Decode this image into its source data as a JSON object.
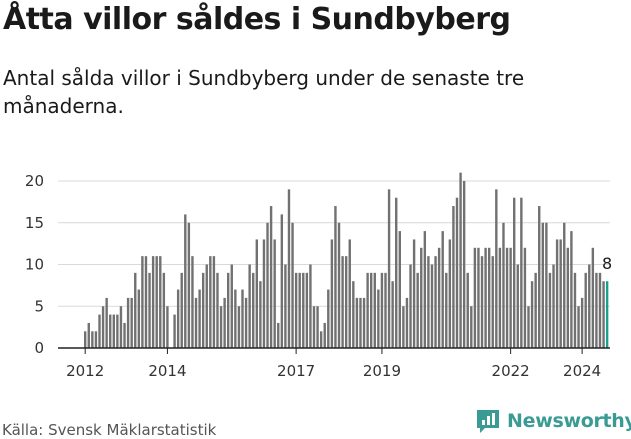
{
  "title": "Åtta villor såldes i Sundbyberg",
  "subtitle": "Antal sålda villor i Sundbyberg under de senaste tre månaderna.",
  "source": "Källa: Svensk Mäklarstatistik",
  "brand": "Newsworthy",
  "colors": {
    "bar": "#717171",
    "highlight": "#1a9f8f",
    "brand": "#3a9b94",
    "grid": "#d9d9d9"
  },
  "chart_data": {
    "type": "bar",
    "title": "Åtta villor såldes i Sundbyberg",
    "xlabel": "",
    "ylabel": "",
    "ylim": [
      0,
      21
    ],
    "yticks": [
      0,
      5,
      10,
      15,
      20
    ],
    "xtick_labels": [
      "2012",
      "2014",
      "2017",
      "2019",
      "2022",
      "2024"
    ],
    "last_value_label": "8",
    "values": [
      2,
      3,
      2,
      2,
      4,
      5,
      6,
      4,
      4,
      4,
      5,
      3,
      6,
      6,
      9,
      7,
      11,
      11,
      9,
      11,
      11,
      11,
      9,
      5,
      0,
      4,
      7,
      9,
      16,
      15,
      11,
      6,
      7,
      9,
      10,
      11,
      11,
      9,
      5,
      6,
      9,
      10,
      7,
      5,
      7,
      6,
      10,
      9,
      13,
      8,
      13,
      15,
      17,
      13,
      3,
      16,
      10,
      19,
      15,
      9,
      9,
      9,
      9,
      10,
      5,
      5,
      2,
      3,
      7,
      13,
      17,
      15,
      11,
      11,
      13,
      8,
      6,
      6,
      6,
      9,
      9,
      9,
      7,
      9,
      9,
      19,
      8,
      18,
      14,
      5,
      6,
      10,
      13,
      9,
      12,
      14,
      11,
      10,
      11,
      12,
      14,
      9,
      13,
      17,
      18,
      21,
      20,
      9,
      5,
      12,
      12,
      11,
      12,
      12,
      11,
      19,
      12,
      15,
      12,
      12,
      18,
      10,
      18,
      12,
      5,
      8,
      9,
      17,
      15,
      15,
      9,
      10,
      13,
      13,
      15,
      12,
      14,
      9,
      5,
      6,
      9,
      10,
      12,
      9,
      9,
      8,
      8
    ]
  }
}
